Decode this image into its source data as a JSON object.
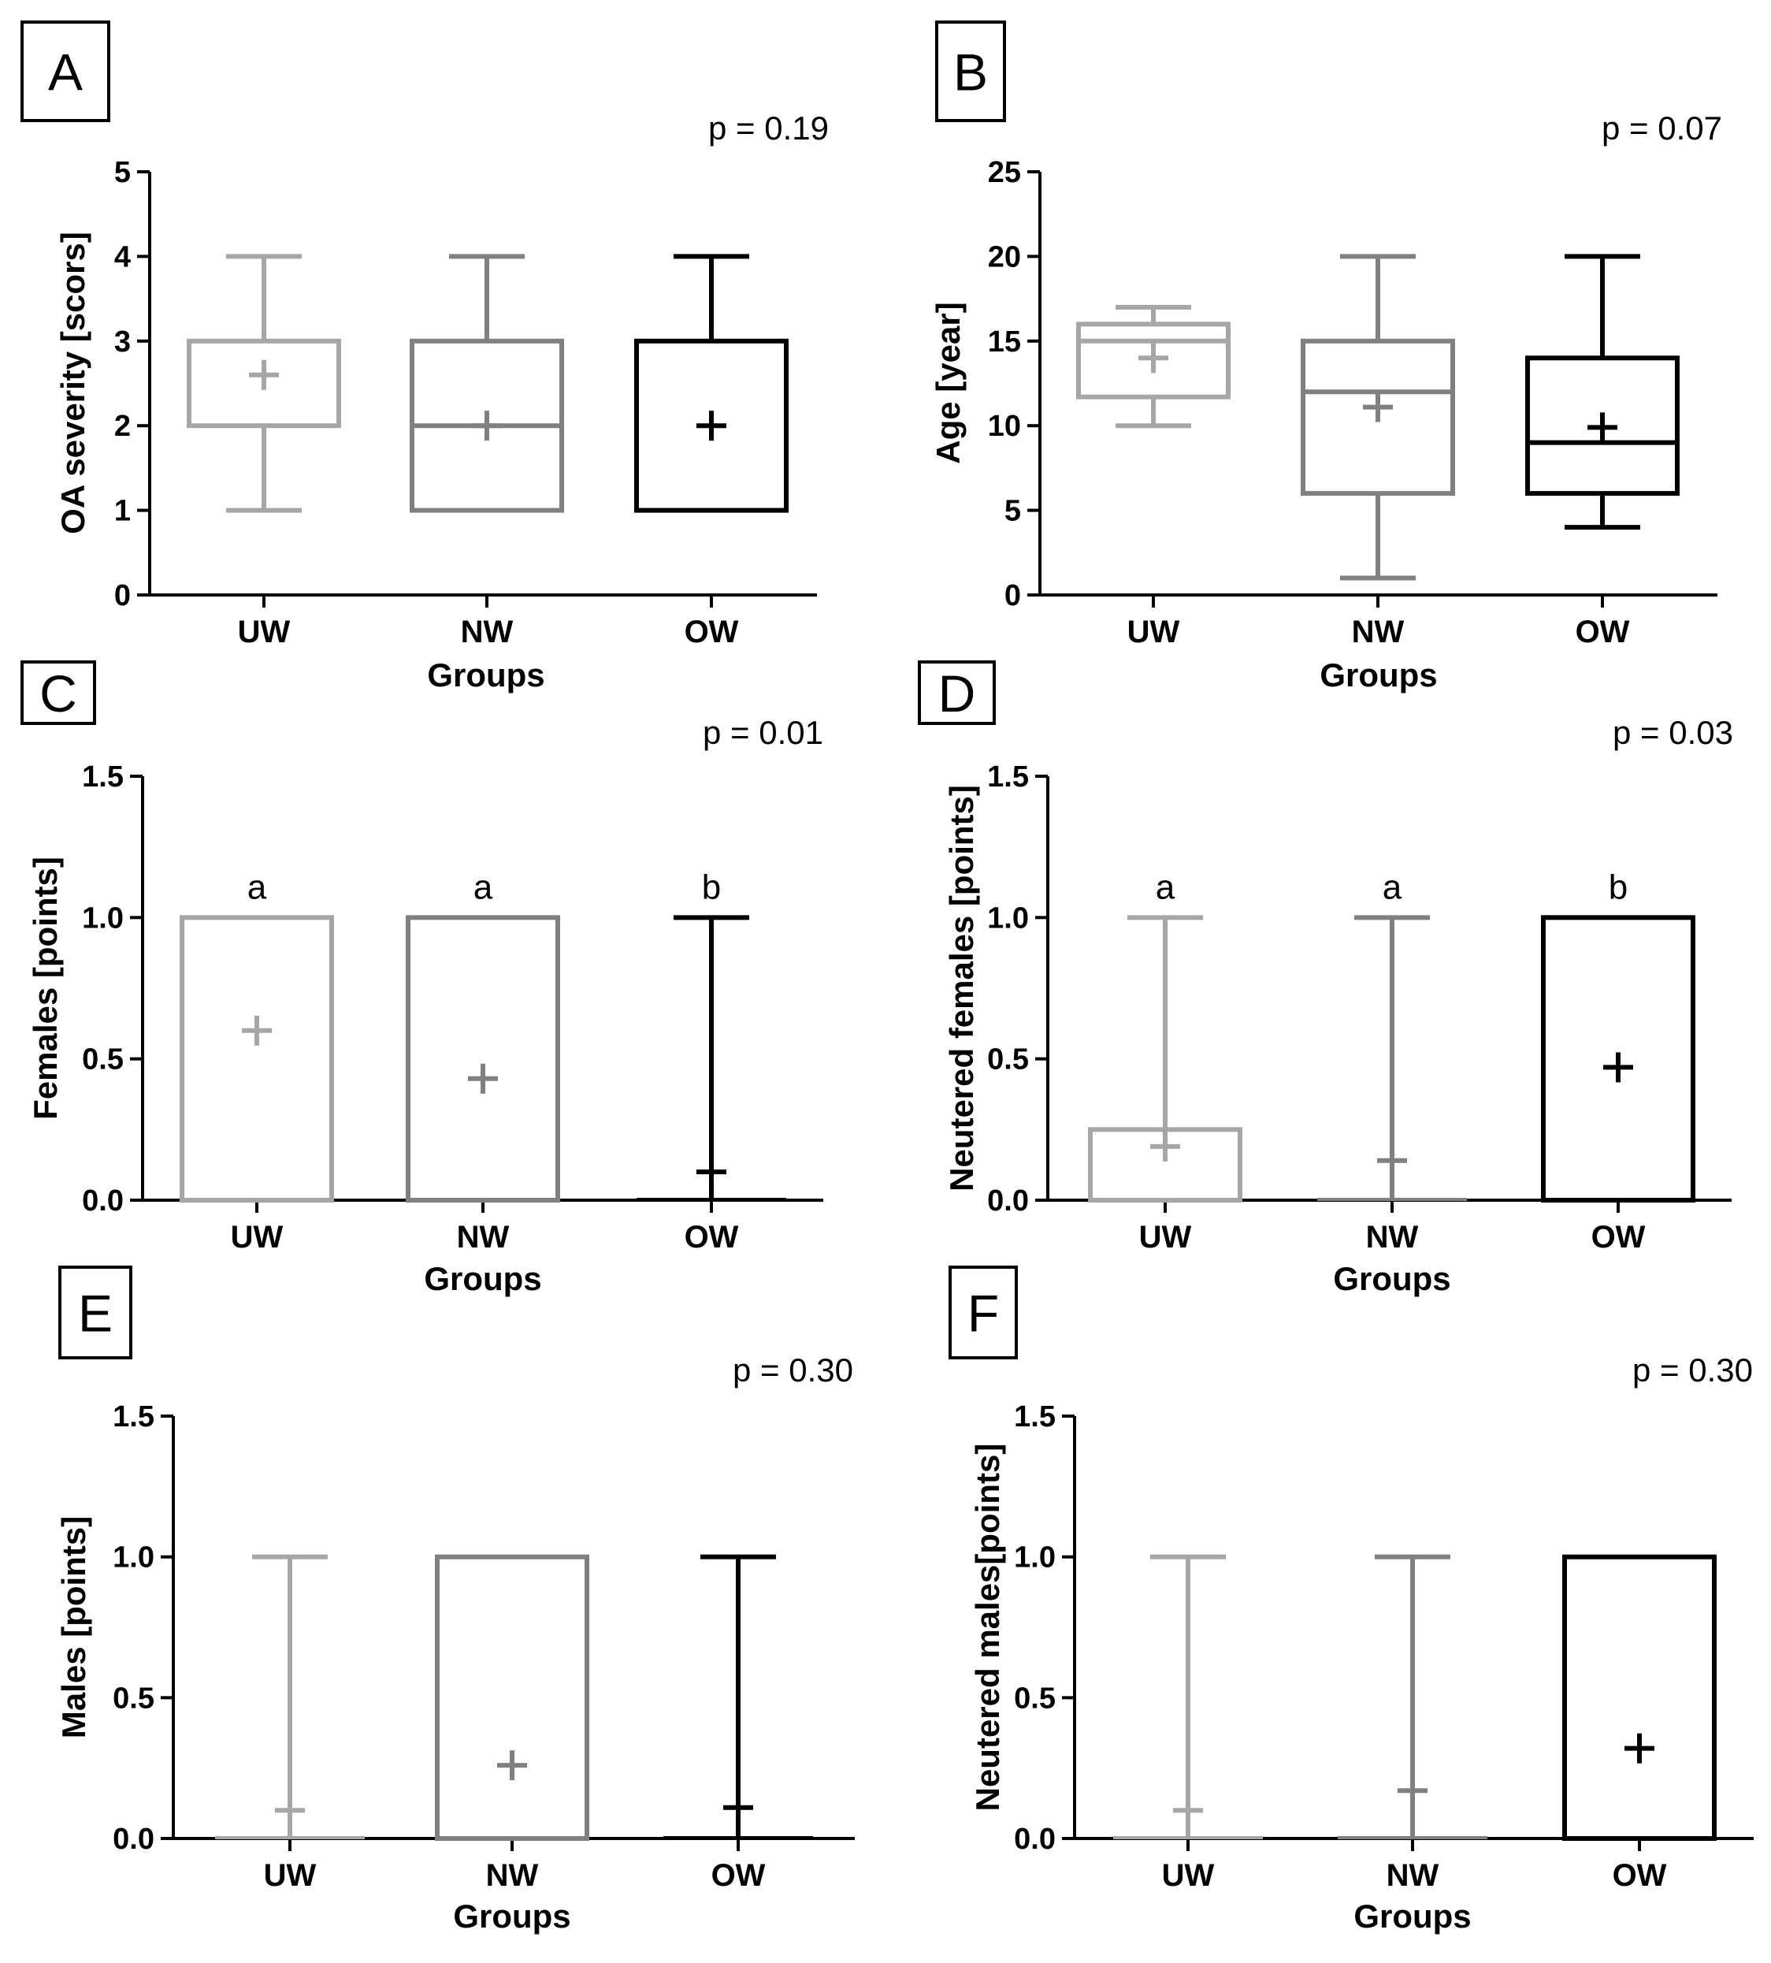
{
  "chart_data": [
    {
      "panel": "A",
      "type": "box",
      "p_value": "p = 0.19",
      "ylabel": "OA severity [scors]",
      "xlabel": "Groups",
      "ylim": [
        0,
        5
      ],
      "yticks": [
        "0",
        "1",
        "2",
        "3",
        "4",
        "5"
      ],
      "categories": [
        "UW",
        "NW",
        "OW"
      ],
      "boxes": [
        {
          "min": 1,
          "q1": 2,
          "median": 2,
          "q3": 3,
          "max": 4,
          "mean": 2.6
        },
        {
          "min": 1,
          "q1": 1,
          "median": 2,
          "q3": 3,
          "max": 4,
          "mean": 2.0
        },
        {
          "min": 1,
          "q1": 1,
          "median": 1,
          "q3": 3,
          "max": 4,
          "mean": 2.0
        }
      ],
      "letters": null
    },
    {
      "panel": "B",
      "type": "box",
      "p_value": "p = 0.07",
      "ylabel": "Age [year]",
      "xlabel": "Groups",
      "ylim": [
        0,
        25
      ],
      "yticks": [
        "0",
        "5",
        "10",
        "15",
        "20",
        "25"
      ],
      "categories": [
        "UW",
        "NW",
        "OW"
      ],
      "boxes": [
        {
          "min": 10,
          "q1": 11.7,
          "median": 15,
          "q3": 16,
          "max": 17,
          "mean": 14
        },
        {
          "min": 1,
          "q1": 6,
          "median": 12,
          "q3": 15,
          "max": 20,
          "mean": 11.1
        },
        {
          "min": 4,
          "q1": 6,
          "median": 9,
          "q3": 14,
          "max": 20,
          "mean": 9.9
        }
      ],
      "letters": null
    },
    {
      "panel": "C",
      "type": "box",
      "p_value": "p = 0.01",
      "ylabel": "Females [points]",
      "xlabel": "Groups",
      "ylim": [
        0,
        1.5
      ],
      "yticks": [
        "0.0",
        "0.5",
        "1.0",
        "1.5"
      ],
      "categories": [
        "UW",
        "NW",
        "OW"
      ],
      "boxes": [
        {
          "min": 0,
          "q1": 0,
          "median": 0,
          "q3": 1,
          "max": 1,
          "mean": 0.6
        },
        {
          "min": 0,
          "q1": 0,
          "median": 0,
          "q3": 1,
          "max": 1,
          "mean": 0.43
        },
        {
          "min": 0,
          "q1": 0,
          "median": 0,
          "q3": 0,
          "max": 1,
          "mean": 0.1
        }
      ],
      "letters": [
        "a",
        "a",
        "b"
      ]
    },
    {
      "panel": "D",
      "type": "box",
      "p_value": "p = 0.03",
      "ylabel": "Neutered females [points]",
      "xlabel": "Groups",
      "ylim": [
        0,
        1.5
      ],
      "yticks": [
        "0.0",
        "0.5",
        "1.0",
        "1.5"
      ],
      "categories": [
        "UW",
        "NW",
        "OW"
      ],
      "boxes": [
        {
          "min": 0,
          "q1": 0,
          "median": 0,
          "q3": 0.25,
          "max": 1,
          "mean": 0.19
        },
        {
          "min": 0,
          "q1": 0,
          "median": 0,
          "q3": 0,
          "max": 1,
          "mean": 0.14
        },
        {
          "min": 0,
          "q1": 0,
          "median": 0,
          "q3": 1,
          "max": 1,
          "mean": 0.47
        }
      ],
      "letters": [
        "a",
        "a",
        "b"
      ]
    },
    {
      "panel": "E",
      "type": "box",
      "p_value": "p = 0.30",
      "ylabel": "Males [points]",
      "xlabel": "Groups",
      "ylim": [
        0,
        1.5
      ],
      "yticks": [
        "0.0",
        "0.5",
        "1.0",
        "1.5"
      ],
      "categories": [
        "UW",
        "NW",
        "OW"
      ],
      "boxes": [
        {
          "min": 0,
          "q1": 0,
          "median": 0,
          "q3": 0,
          "max": 1,
          "mean": 0.1
        },
        {
          "min": 0,
          "q1": 0,
          "median": 0,
          "q3": 1,
          "max": 1,
          "mean": 0.26
        },
        {
          "min": 0,
          "q1": 0,
          "median": 0,
          "q3": 0,
          "max": 1,
          "mean": 0.11
        }
      ],
      "letters": null
    },
    {
      "panel": "F",
      "type": "box",
      "p_value": "p = 0.30",
      "ylabel": "Neutered males[points]",
      "xlabel": "Groups",
      "ylim": [
        0,
        1.5
      ],
      "yticks": [
        "0.0",
        "0.5",
        "1.0",
        "1.5"
      ],
      "categories": [
        "UW",
        "NW",
        "OW"
      ],
      "boxes": [
        {
          "min": 0,
          "q1": 0,
          "median": 0,
          "q3": 0,
          "max": 1,
          "mean": 0.1
        },
        {
          "min": 0,
          "q1": 0,
          "median": 0,
          "q3": 0,
          "max": 1,
          "mean": 0.17
        },
        {
          "min": 0,
          "q1": 0,
          "median": 0,
          "q3": 1,
          "max": 1,
          "mean": 0.32
        }
      ],
      "letters": null
    }
  ],
  "group_colors": [
    "#a6a6a6",
    "#808080",
    "#000000"
  ]
}
